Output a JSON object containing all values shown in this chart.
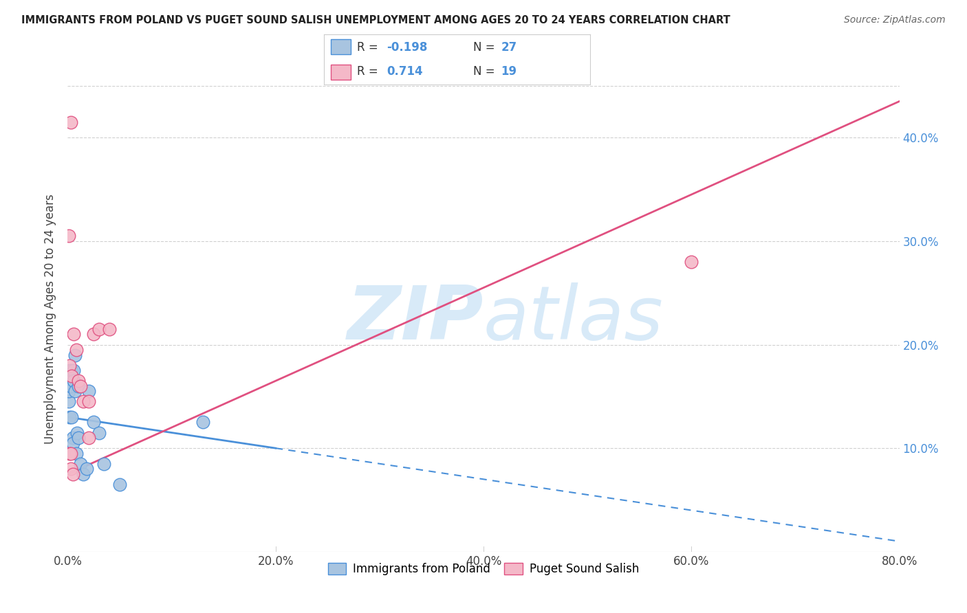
{
  "title": "IMMIGRANTS FROM POLAND VS PUGET SOUND SALISH UNEMPLOYMENT AMONG AGES 20 TO 24 YEARS CORRELATION CHART",
  "source": "Source: ZipAtlas.com",
  "ylabel": "Unemployment Among Ages 20 to 24 years",
  "xlabel_ticks": [
    "0.0%",
    "20.0%",
    "40.0%",
    "60.0%",
    "80.0%"
  ],
  "ytick_labels": [
    "10.0%",
    "20.0%",
    "30.0%",
    "40.0%"
  ],
  "ytick_values": [
    0.1,
    0.2,
    0.3,
    0.4
  ],
  "xlim": [
    0.0,
    0.8
  ],
  "ylim": [
    0.0,
    0.45
  ],
  "legend_labels": [
    "Immigrants from Poland",
    "Puget Sound Salish"
  ],
  "R_blue": -0.198,
  "N_blue": 27,
  "R_pink": 0.714,
  "N_pink": 19,
  "blue_scatter_x": [
    0.001,
    0.001,
    0.002,
    0.002,
    0.003,
    0.003,
    0.004,
    0.004,
    0.005,
    0.005,
    0.006,
    0.006,
    0.007,
    0.007,
    0.008,
    0.009,
    0.01,
    0.01,
    0.012,
    0.015,
    0.018,
    0.02,
    0.025,
    0.03,
    0.035,
    0.13,
    0.05
  ],
  "blue_scatter_y": [
    0.145,
    0.155,
    0.13,
    0.175,
    0.16,
    0.17,
    0.175,
    0.13,
    0.11,
    0.105,
    0.175,
    0.165,
    0.155,
    0.19,
    0.095,
    0.115,
    0.11,
    0.16,
    0.085,
    0.075,
    0.08,
    0.155,
    0.125,
    0.115,
    0.085,
    0.125,
    0.065
  ],
  "pink_scatter_x": [
    0.001,
    0.002,
    0.002,
    0.003,
    0.003,
    0.004,
    0.005,
    0.006,
    0.008,
    0.01,
    0.012,
    0.015,
    0.02,
    0.02,
    0.025,
    0.03,
    0.04,
    0.6,
    0.003
  ],
  "pink_scatter_y": [
    0.305,
    0.18,
    0.095,
    0.095,
    0.08,
    0.17,
    0.075,
    0.21,
    0.195,
    0.165,
    0.16,
    0.145,
    0.145,
    0.11,
    0.21,
    0.215,
    0.215,
    0.28,
    0.415
  ],
  "blue_color": "#a8c4e0",
  "pink_color": "#f4b8c8",
  "blue_line_color": "#4a90d9",
  "pink_line_color": "#e05080",
  "background_color": "#ffffff",
  "watermark_zip": "ZIP",
  "watermark_atlas": "atlas",
  "watermark_color": "#d8eaf8",
  "grid_color": "#d0d0d0",
  "blue_line_intercept": 0.13,
  "blue_line_slope": -0.15,
  "pink_line_intercept": 0.075,
  "pink_line_slope": 0.45
}
